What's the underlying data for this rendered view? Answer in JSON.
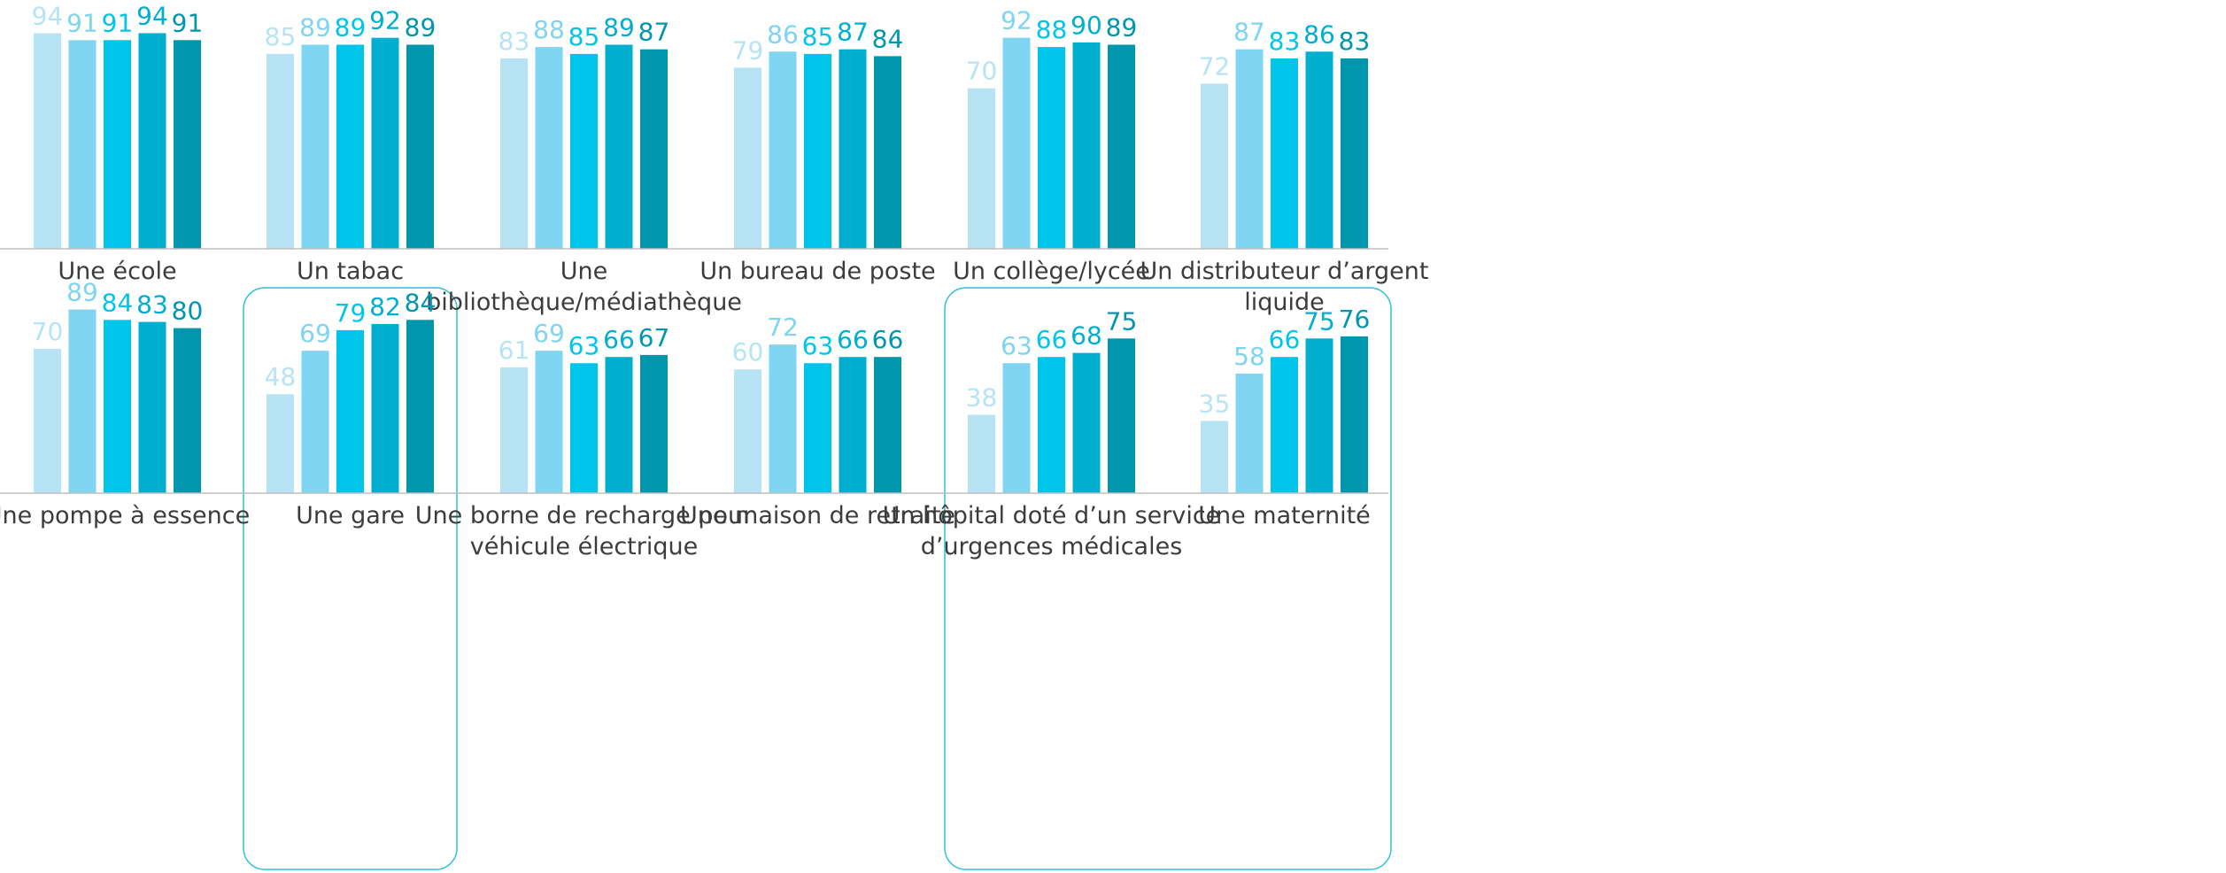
{
  "palette": [
    "#b7e4f4",
    "#7fd4ef",
    "#00c5eb",
    "#00aed0",
    "#0096ae"
  ],
  "chart_data": [
    {
      "type": "bar",
      "ylim": [
        0,
        100
      ],
      "grid": false,
      "legend": "none",
      "panels": [
        {
          "category": "Une école",
          "values": [
            94,
            91,
            91,
            94,
            91
          ],
          "highlighted": false
        },
        {
          "category": "Un tabac",
          "values": [
            85,
            89,
            89,
            92,
            89
          ],
          "highlighted": false
        },
        {
          "category": "Une bibliothèque/médiathèque",
          "label_lines": [
            "Une",
            "bibliothèque/médiathèque"
          ],
          "values": [
            83,
            88,
            85,
            89,
            87
          ],
          "highlighted": false
        },
        {
          "category": "Un bureau de poste",
          "values": [
            79,
            86,
            85,
            87,
            84
          ],
          "highlighted": false
        },
        {
          "category": "Un collège/lycée",
          "values": [
            70,
            92,
            88,
            90,
            89
          ],
          "highlighted": false
        },
        {
          "category": "Un distributeur d’argent liquide",
          "label_lines": [
            "Un distributeur d’argent",
            "liquide"
          ],
          "values": [
            72,
            87,
            83,
            86,
            83
          ],
          "highlighted": false
        }
      ]
    },
    {
      "type": "bar",
      "ylim": [
        0,
        100
      ],
      "grid": false,
      "legend": "none",
      "panels": [
        {
          "category": "Une pompe à essence",
          "values": [
            70,
            89,
            84,
            83,
            80
          ],
          "highlighted": false
        },
        {
          "category": "Une gare",
          "values": [
            48,
            69,
            79,
            82,
            84
          ],
          "highlighted": true
        },
        {
          "category": "Une borne de recharge pour véhicule électrique",
          "label_lines": [
            "Une borne de recharge pour",
            "véhicule électrique"
          ],
          "values": [
            61,
            69,
            63,
            66,
            67
          ],
          "highlighted": false
        },
        {
          "category": "Une maison de retraite",
          "values": [
            60,
            72,
            63,
            66,
            66
          ],
          "highlighted": false
        },
        {
          "category": "Un hôpital doté d’un service d’urgences médicales",
          "label_lines": [
            "Un hôpital doté d’un service",
            "d’urgences médicales"
          ],
          "values": [
            38,
            63,
            66,
            68,
            75
          ],
          "highlighted": true
        },
        {
          "category": "Une maternité",
          "values": [
            35,
            58,
            66,
            75,
            76
          ],
          "highlighted": true
        }
      ]
    }
  ]
}
